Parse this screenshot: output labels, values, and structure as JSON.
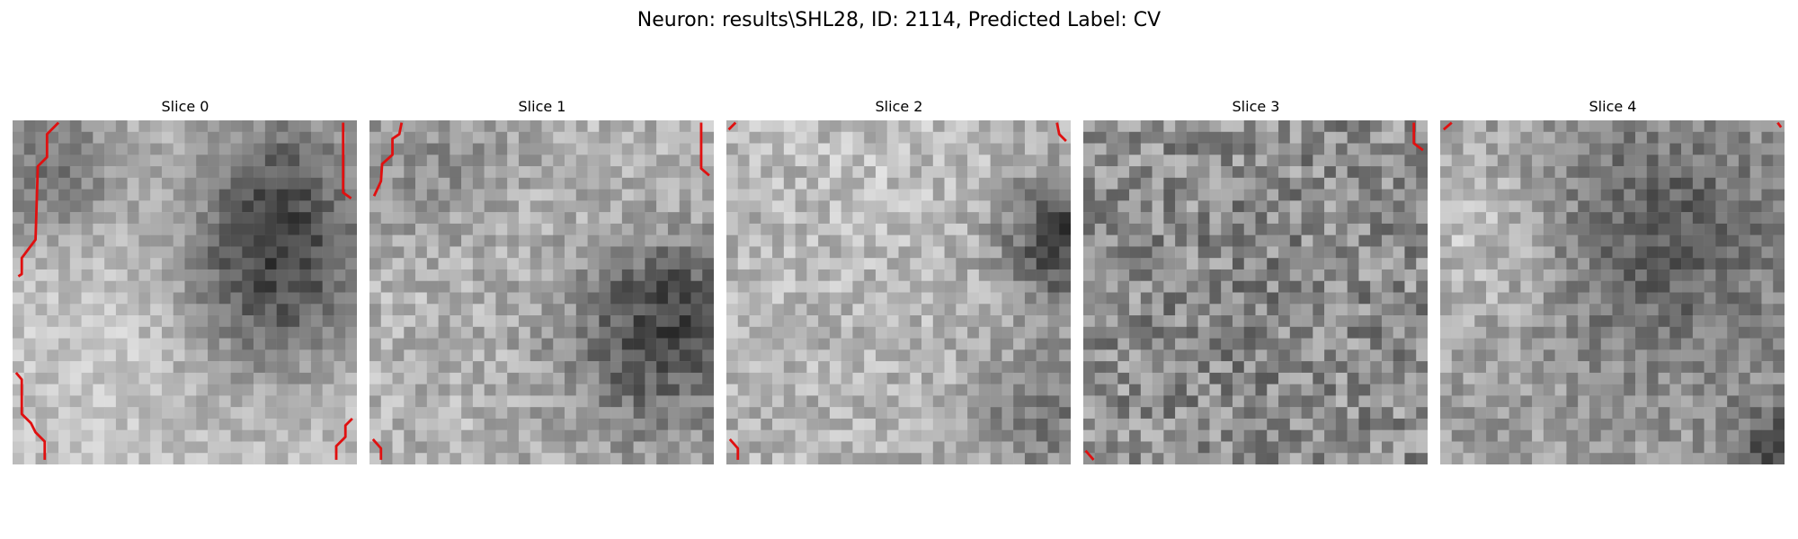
{
  "figure": {
    "title": "Neuron: results\\SHL28, ID: 2114, Predicted Label: CV"
  },
  "panels": [
    {
      "title": "Slice 0",
      "seed": 1001,
      "cmap": "gray",
      "contour_color": "#e01010"
    },
    {
      "title": "Slice 1",
      "seed": 2002,
      "cmap": "gray",
      "contour_color": "#e01010"
    },
    {
      "title": "Slice 2",
      "seed": 3003,
      "cmap": "gray",
      "contour_color": "#e01010"
    },
    {
      "title": "Slice 3",
      "seed": 4004,
      "cmap": "gray",
      "contour_color": "#e01010"
    },
    {
      "title": "Slice 4",
      "seed": 5005,
      "cmap": "gray",
      "contour_color": "#e01010"
    }
  ]
}
